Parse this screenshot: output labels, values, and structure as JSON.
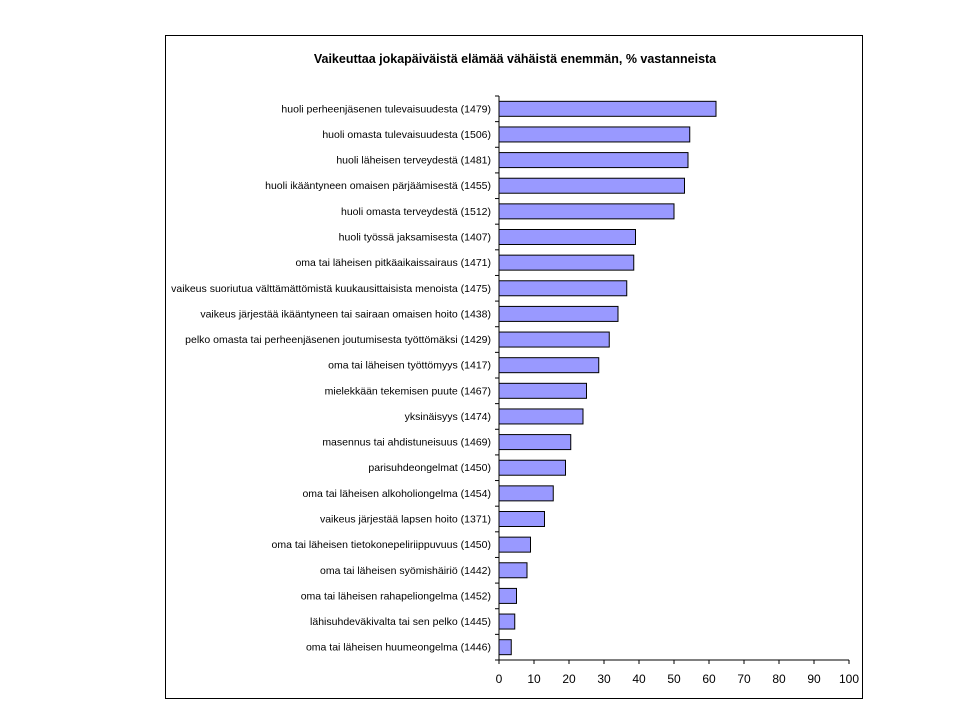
{
  "chart_data": {
    "type": "bar",
    "orientation": "horizontal",
    "title": "Vaikeuttaa jokapäiväistä elämää vähäistä enemmän, % vastanneista",
    "xlabel": "",
    "ylabel": "",
    "xlim": [
      0,
      100
    ],
    "xticks": [
      "0",
      "10",
      "20",
      "30",
      "40",
      "50",
      "60",
      "70",
      "80",
      "90",
      "100"
    ],
    "grid": false,
    "legend": "none",
    "bar_color": "#9999ff",
    "categories": [
      "huoli perheenjäsenen tulevaisuudesta (1479)",
      "huoli omasta tulevaisuudesta (1506)",
      "huoli läheisen terveydestä (1481)",
      "huoli ikääntyneen omaisen pärjäämisestä (1455)",
      "huoli omasta terveydestä (1512)",
      "huoli työssä jaksamisesta (1407)",
      "oma tai läheisen pitkäaikaissairaus (1471)",
      "vaikeus suoriutua välttämättömistä kuukausittaisista menoista (1475)",
      "vaikeus järjestää ikääntyneen tai sairaan omaisen hoito (1438)",
      "pelko omasta tai perheenjäsenen joutumisesta työttömäksi (1429)",
      "oma tai läheisen työttömyys (1417)",
      "mielekkään tekemisen puute (1467)",
      "yksinäisyys (1474)",
      "masennus tai ahdistuneisuus (1469)",
      "parisuhdeongelmat (1450)",
      "oma tai läheisen alkoholiongelma (1454)",
      "vaikeus järjestää lapsen hoito (1371)",
      "oma tai läheisen tietokonepeliriippuvuus (1450)",
      "oma tai läheisen syömishäiriö (1442)",
      "oma tai läheisen rahapeliongelma (1452)",
      "lähisuhdeväkivalta tai sen pelko (1445)",
      "oma tai läheisen huumeongelma (1446)"
    ],
    "values": [
      62,
      54.5,
      54,
      53,
      50,
      39,
      38.5,
      36.5,
      34,
      31.5,
      28.5,
      25,
      24,
      20.5,
      19,
      15.5,
      13,
      9,
      8,
      5,
      4.5,
      3.5
    ]
  }
}
